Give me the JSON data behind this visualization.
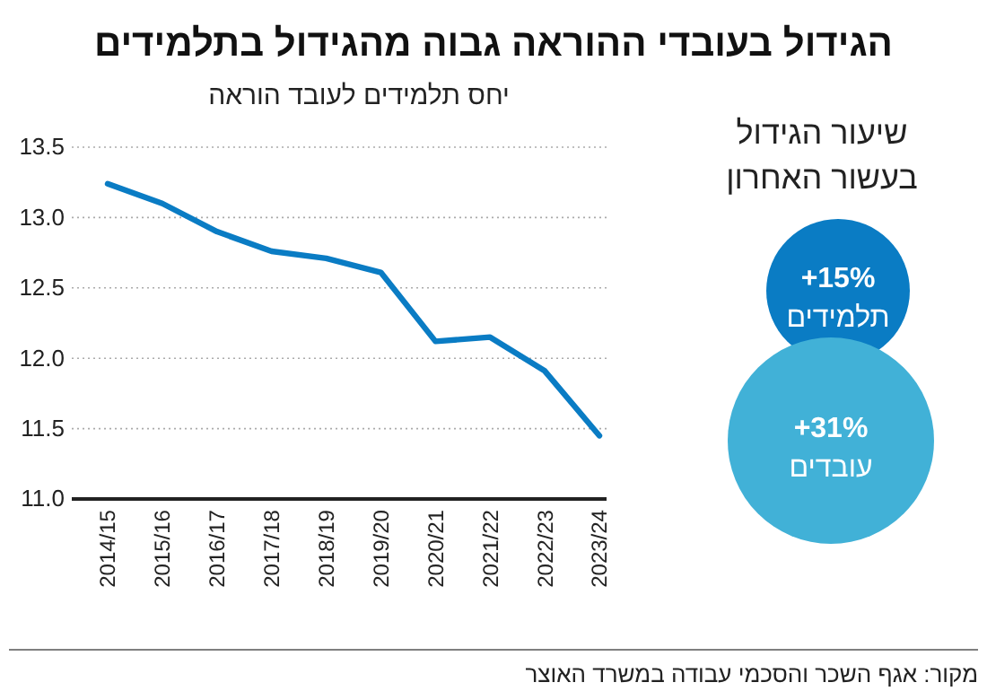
{
  "chart_data": [
    {
      "type": "line",
      "title": "הגידול בעובדי ההוראה גבוה מהגידול בתלמידים",
      "subtitle": "יחס תלמידים לעובד הוראה",
      "categories": [
        "2014/15",
        "2015/16",
        "2016/17",
        "2017/18",
        "2018/19",
        "2019/20",
        "2020/21",
        "2021/22",
        "2022/23",
        "2023/24"
      ],
      "series": [
        {
          "color": "#0a7cc4",
          "values": [
            13.24,
            13.1,
            12.9,
            12.76,
            12.71,
            12.61,
            12.12,
            12.15,
            11.91,
            11.45
          ]
        }
      ],
      "ylim": [
        11.0,
        13.5
      ],
      "yticks": [
        {
          "value": 11.0,
          "label": "11.0"
        },
        {
          "value": 11.5,
          "label": "11.5"
        },
        {
          "value": 12.0,
          "label": "12.0"
        },
        {
          "value": 12.5,
          "label": "12.5"
        },
        {
          "value": 13.0,
          "label": "13.0"
        },
        {
          "value": 13.5,
          "label": "13.5"
        }
      ],
      "grid": "y",
      "marker": "none",
      "line_style": "solid",
      "annotations": [
        "מקור: אגף השכר והסכמי עבודה במשרד האוצר"
      ]
    },
    {
      "type": "other",
      "title": "שיעור הגידול בעשור האחרון",
      "categories": [
        "תלמידים",
        "עובדים"
      ],
      "values": [
        15,
        31
      ],
      "value_labels": [
        "+15%",
        "+31%"
      ],
      "colors": [
        "#0a7cc4",
        "#41b1d7"
      ]
    }
  ]
}
